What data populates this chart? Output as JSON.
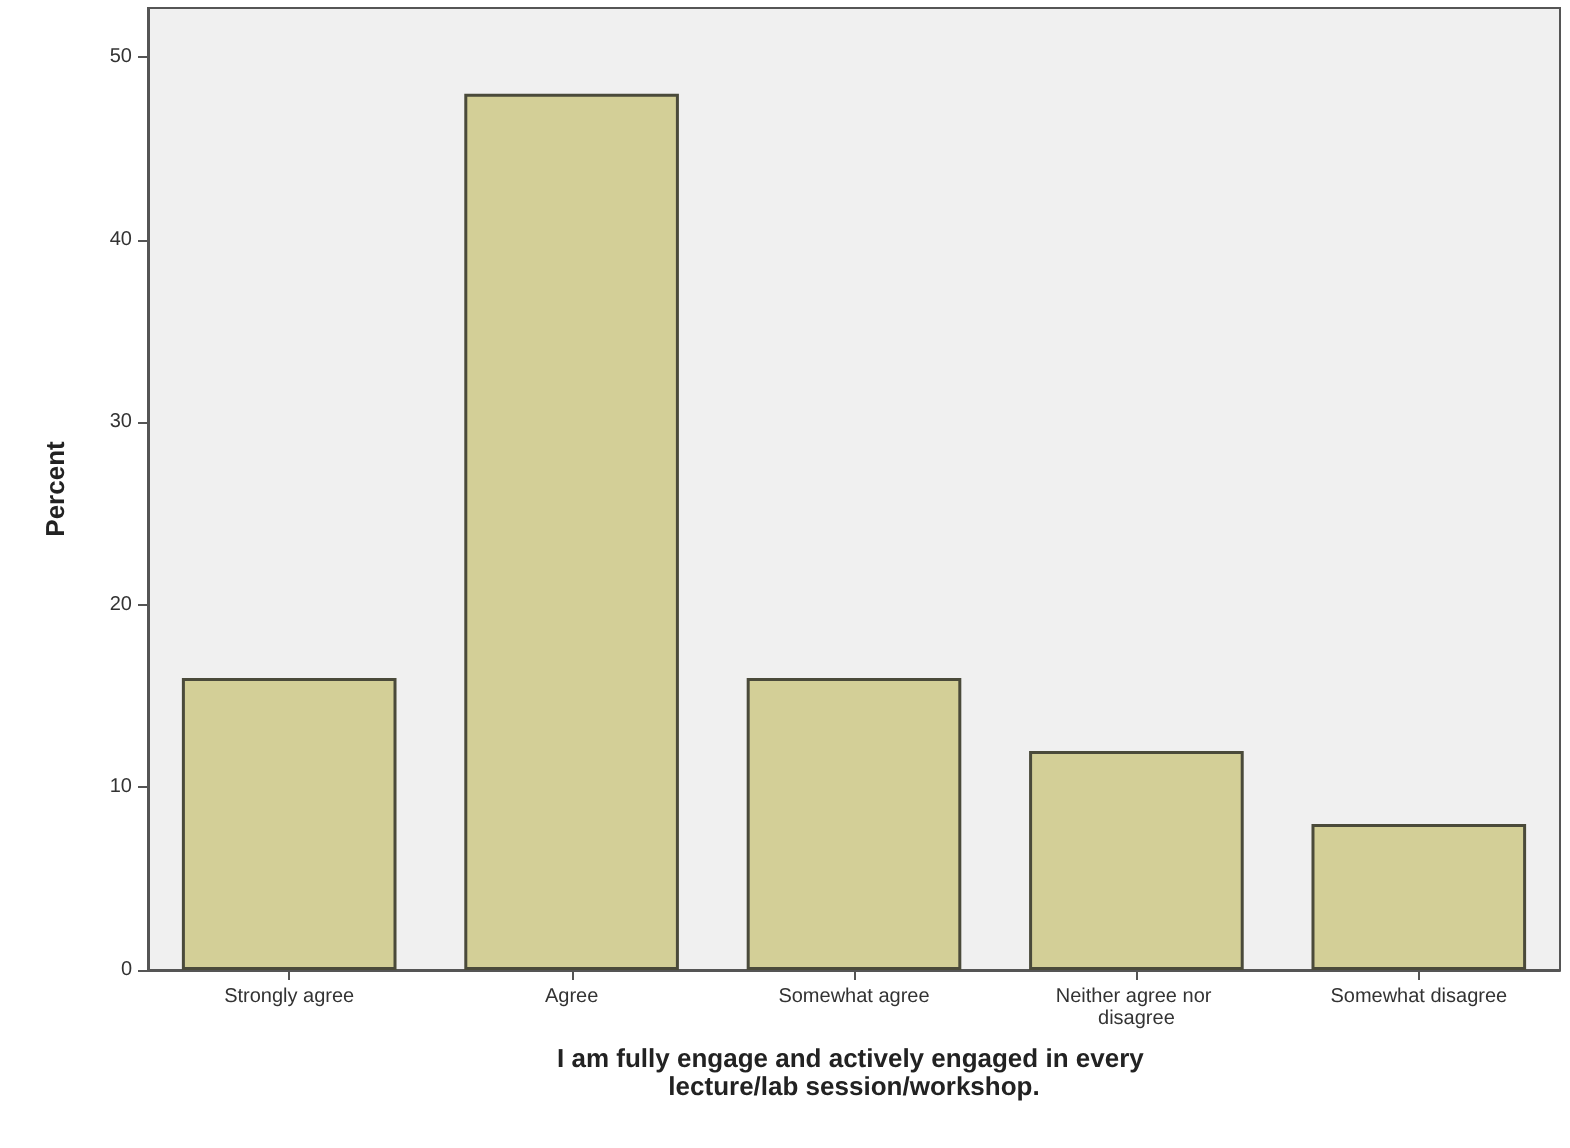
{
  "chart_data": {
    "type": "bar",
    "xlabel": "I am fully engage and actively engaged in every lecture/lab session/workshop.",
    "ylabel": "Percent",
    "categories": [
      "Strongly agree",
      "Agree",
      "Somewhat agree",
      "Neither agree nor disagree",
      "Somewhat disagree"
    ],
    "values": [
      16,
      48,
      16,
      12,
      8
    ],
    "color": "#d3cf97",
    "ylim": [
      0,
      52.7
    ],
    "yticks": [
      0,
      10,
      20,
      30,
      40,
      50
    ],
    "grid": false
  }
}
